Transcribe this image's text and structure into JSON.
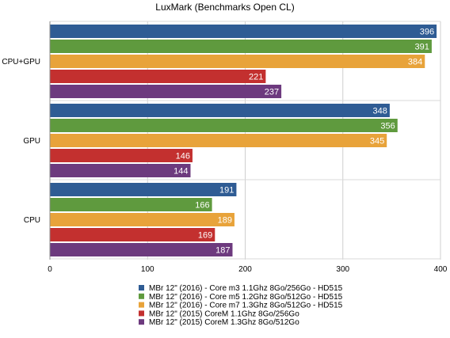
{
  "chart_data": {
    "type": "bar",
    "orientation": "horizontal",
    "title": "LuxMark (Benchmarks Open CL)",
    "categories": [
      "CPU+GPU",
      "GPU",
      "CPU"
    ],
    "series": [
      {
        "name": "MBr 12\" (2016) - Core m3 1.1Ghz  8Go/256Go - HD515",
        "color": "#2f5c94",
        "values": [
          396,
          348,
          191
        ]
      },
      {
        "name": "MBr 12\" (2016) - Core m5 1.2Ghz  8Go/512Go - HD515",
        "color": "#5f9a3e",
        "values": [
          391,
          356,
          166
        ]
      },
      {
        "name": "MBr 12\" (2016) - Core m7 1.3Ghz  8Go/512Go - HD515",
        "color": "#e8a33a",
        "values": [
          384,
          345,
          189
        ]
      },
      {
        "name": "MBr 12\" (2015) CoreM 1.1Ghz 8Go/256Go",
        "color": "#c3302f",
        "values": [
          221,
          146,
          169
        ]
      },
      {
        "name": "MBr 12\" (2015) CoreM 1.3Ghz 8Go/512Go",
        "color": "#6d3a7e",
        "values": [
          237,
          144,
          187
        ]
      }
    ],
    "xlim": [
      0,
      400
    ],
    "xticks": [
      0,
      100,
      200,
      300,
      400
    ],
    "grid": true,
    "legend_position": "bottom"
  }
}
